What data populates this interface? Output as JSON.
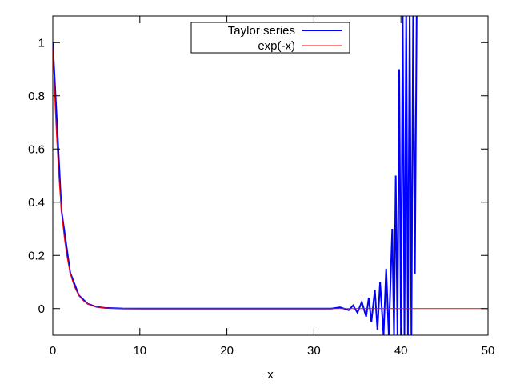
{
  "chart_data": {
    "type": "line",
    "xlabel": "x",
    "ylabel": "",
    "xlim": [
      0,
      50
    ],
    "ylim": [
      -0.1,
      1.1
    ],
    "x_ticks": [
      0,
      10,
      20,
      30,
      40,
      50
    ],
    "x_tick_labels": [
      "0",
      "10",
      "20",
      "30",
      "40",
      "50"
    ],
    "y_ticks": [
      0,
      0.2,
      0.4,
      0.6,
      0.8,
      1
    ],
    "y_tick_labels": [
      "0",
      "0.2",
      "0.4",
      "0.6",
      "0.8",
      "1"
    ],
    "grid": false,
    "legend": {
      "placement": "top-center",
      "entries": [
        "Taylor series",
        "exp(-x)"
      ]
    },
    "series": [
      {
        "name": "Taylor series",
        "color": "#0000ff",
        "x": [
          0,
          1,
          2,
          3,
          4,
          5,
          6,
          8,
          10,
          15,
          20,
          25,
          30,
          32,
          33,
          34,
          34.5,
          35,
          35.5,
          36,
          36.3,
          36.6,
          37,
          37.3,
          37.6,
          38,
          38.3,
          38.6,
          39,
          39.2,
          39.4,
          39.6,
          39.8,
          40,
          40.2,
          40.4,
          40.6,
          40.8,
          41,
          41.2,
          41.4,
          41.6,
          41.8
        ],
        "y": [
          1,
          0.3679,
          0.1353,
          0.0498,
          0.0183,
          0.0067,
          0.0025,
          0.0003,
          0,
          0,
          0,
          0,
          0,
          0,
          0.005,
          -0.006,
          0.012,
          -0.015,
          0.025,
          -0.03,
          0.04,
          -0.05,
          0.07,
          -0.08,
          0.1,
          -0.1,
          0.15,
          -0.1,
          0.3,
          -0.1,
          0.5,
          -0.1,
          0.9,
          -0.1,
          1.1,
          -0.1,
          1.1,
          -0.1,
          1.1,
          -0.1,
          1.1,
          0.13,
          1.1
        ]
      },
      {
        "name": "exp(-x)",
        "color": "#ff0000",
        "function": "exp(-x)",
        "x": [
          0,
          0.5,
          1,
          1.5,
          2,
          3,
          4,
          5,
          6,
          8,
          10,
          50
        ],
        "y": [
          1,
          0.6065,
          0.3679,
          0.2231,
          0.1353,
          0.0498,
          0.0183,
          0.0067,
          0.0025,
          0.0003,
          0,
          0
        ]
      }
    ]
  }
}
